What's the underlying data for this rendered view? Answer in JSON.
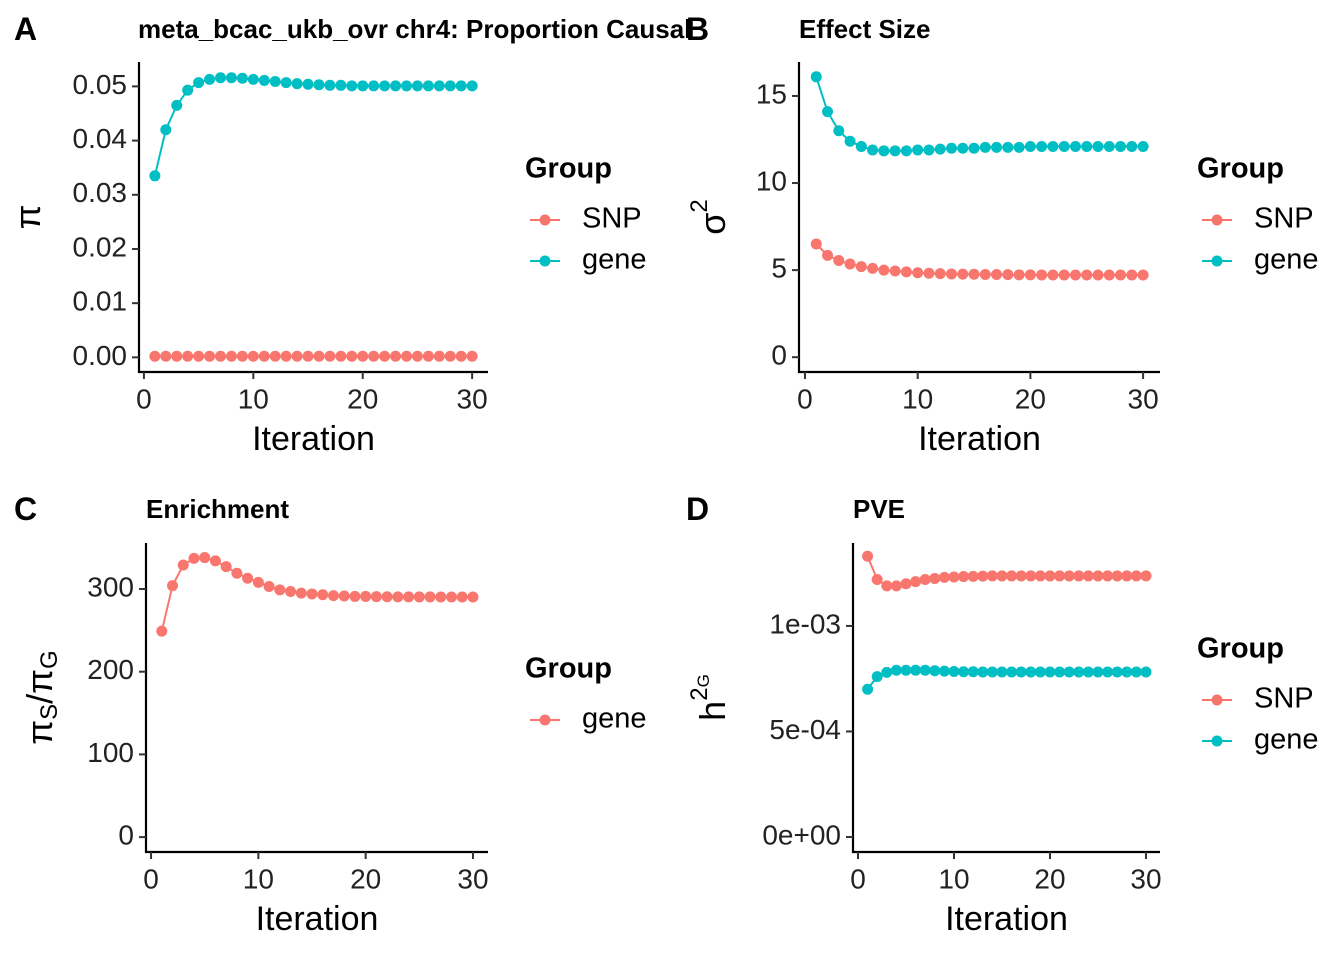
{
  "chart_data": [
    {
      "type": "line",
      "tag": "A",
      "title": "meta_bcac_ukb_ovr chr4: Proportion Causal",
      "xlabel": "Iteration",
      "ylabel": [
        {
          "t": "π",
          "pos": "base"
        }
      ],
      "x": [
        1,
        2,
        3,
        4,
        5,
        6,
        7,
        8,
        9,
        10,
        11,
        12,
        13,
        14,
        15,
        16,
        17,
        18,
        19,
        20,
        21,
        22,
        23,
        24,
        25,
        26,
        27,
        28,
        29,
        30
      ],
      "series": [
        {
          "name": "SNP",
          "color": "#F8766D",
          "values": [
            0.0002,
            0.0002,
            0.0002,
            0.0002,
            0.0002,
            0.0002,
            0.0002,
            0.0002,
            0.0002,
            0.0002,
            0.0002,
            0.0002,
            0.0002,
            0.0002,
            0.0002,
            0.0002,
            0.0002,
            0.0002,
            0.0002,
            0.0002,
            0.0002,
            0.0002,
            0.0002,
            0.0002,
            0.0002,
            0.0002,
            0.0002,
            0.0002,
            0.0002,
            0.0002
          ]
        },
        {
          "name": "gene",
          "color": "#00BFC4",
          "values": [
            0.0335,
            0.042,
            0.0465,
            0.0493,
            0.0507,
            0.0513,
            0.0516,
            0.0516,
            0.0515,
            0.0513,
            0.0511,
            0.0509,
            0.0507,
            0.0505,
            0.0504,
            0.0503,
            0.0502,
            0.0502,
            0.0501,
            0.0501,
            0.0501,
            0.0501,
            0.0501,
            0.0501,
            0.0501,
            0.0501,
            0.0501,
            0.0501,
            0.0501,
            0.0501
          ]
        }
      ],
      "xlim": [
        -0.45,
        31.45
      ],
      "xticks": [
        0,
        10,
        20,
        30
      ],
      "ylim": [
        -0.0027,
        0.0545
      ],
      "yticks": [
        {
          "value": 0,
          "label": "0.00"
        },
        0.01,
        0.02,
        0.03,
        0.04,
        0.05
      ],
      "legend": "right",
      "legend_title": "Group"
    },
    {
      "type": "line",
      "tag": "B",
      "title": "Effect Size",
      "xlabel": "Iteration",
      "ylabel": [
        {
          "t": "σ",
          "pos": "base"
        },
        {
          "t": "2",
          "pos": "sup"
        }
      ],
      "x": [
        1,
        2,
        3,
        4,
        5,
        6,
        7,
        8,
        9,
        10,
        11,
        12,
        13,
        14,
        15,
        16,
        17,
        18,
        19,
        20,
        21,
        22,
        23,
        24,
        25,
        26,
        27,
        28,
        29,
        30
      ],
      "series": [
        {
          "name": "SNP",
          "color": "#F8766D",
          "values": [
            6.5,
            5.85,
            5.55,
            5.35,
            5.2,
            5.1,
            5.0,
            4.95,
            4.9,
            4.85,
            4.82,
            4.8,
            4.78,
            4.77,
            4.76,
            4.75,
            4.75,
            4.74,
            4.73,
            4.73,
            4.72,
            4.72,
            4.72,
            4.72,
            4.72,
            4.72,
            4.72,
            4.72,
            4.72,
            4.72
          ]
        },
        {
          "name": "gene",
          "color": "#00BFC4",
          "values": [
            16.1,
            14.1,
            13.0,
            12.4,
            12.1,
            11.9,
            11.85,
            11.85,
            11.85,
            11.9,
            11.9,
            11.95,
            12.0,
            12.0,
            12.0,
            12.05,
            12.05,
            12.05,
            12.05,
            12.1,
            12.1,
            12.1,
            12.1,
            12.1,
            12.1,
            12.1,
            12.1,
            12.1,
            12.1,
            12.1
          ]
        }
      ],
      "xlim": [
        -0.53,
        31.5
      ],
      "xticks": [
        0,
        10,
        20,
        30
      ],
      "ylim": [
        -0.85,
        16.95
      ],
      "yticks": [
        0,
        5,
        10,
        15
      ],
      "legend": "right",
      "legend_title": "Group"
    },
    {
      "type": "line",
      "tag": "C",
      "title": "Enrichment",
      "xlabel": "Iteration",
      "ylabel": [
        {
          "t": "π",
          "pos": "base"
        },
        {
          "t": "S",
          "pos": "sub"
        },
        {
          "t": "/",
          "pos": "base"
        },
        {
          "t": "π",
          "pos": "base"
        },
        {
          "t": "G",
          "pos": "sub"
        }
      ],
      "x": [
        1,
        2,
        3,
        4,
        5,
        6,
        7,
        8,
        9,
        10,
        11,
        12,
        13,
        14,
        15,
        16,
        17,
        18,
        19,
        20,
        21,
        22,
        23,
        24,
        25,
        26,
        27,
        28,
        29,
        30
      ],
      "series": [
        {
          "name": "gene",
          "color": "#F8766D",
          "values": [
            249,
            304,
            329,
            337,
            338,
            334,
            327,
            319,
            313,
            308,
            303,
            299,
            297,
            295,
            294,
            293,
            292,
            291.5,
            291,
            291,
            290.8,
            290.6,
            290.5,
            290.5,
            290.4,
            290.4,
            290.3,
            290.3,
            290.3,
            290.3
          ]
        }
      ],
      "xlim": [
        -0.47,
        31.4
      ],
      "xticks": [
        0,
        10,
        20,
        30
      ],
      "ylim": [
        -18,
        355.6
      ],
      "yticks": [
        0,
        100,
        200,
        300
      ],
      "legend": "right",
      "legend_title": "Group"
    },
    {
      "type": "line",
      "tag": "D",
      "title": "PVE",
      "xlabel": "Iteration",
      "ylabel": [
        {
          "t": "h",
          "pos": "base"
        },
        {
          "t": "2",
          "pos": "sup"
        },
        {
          "t": "G",
          "pos": "supsub"
        }
      ],
      "x": [
        1,
        2,
        3,
        4,
        5,
        6,
        7,
        8,
        9,
        10,
        11,
        12,
        13,
        14,
        15,
        16,
        17,
        18,
        19,
        20,
        21,
        22,
        23,
        24,
        25,
        26,
        27,
        28,
        29,
        30
      ],
      "series": [
        {
          "name": "SNP",
          "color": "#F8766D",
          "values": [
            0.00133,
            0.00122,
            0.00119,
            0.00119,
            0.0012,
            0.00121,
            0.00122,
            0.001225,
            0.00123,
            0.001232,
            0.001234,
            0.001235,
            0.001236,
            0.001237,
            0.001237,
            0.001237,
            0.001237,
            0.001237,
            0.001237,
            0.001237,
            0.001237,
            0.001237,
            0.001237,
            0.001237,
            0.001237,
            0.001237,
            0.001237,
            0.001237,
            0.001237,
            0.001237
          ]
        },
        {
          "name": "gene",
          "color": "#00BFC4",
          "values": [
            0.0007,
            0.00076,
            0.00078,
            0.00079,
            0.00079,
            0.00079,
            0.00079,
            0.000788,
            0.000786,
            0.000784,
            0.000783,
            0.000783,
            0.000782,
            0.000782,
            0.000782,
            0.000782,
            0.000782,
            0.000782,
            0.000782,
            0.000782,
            0.000782,
            0.000782,
            0.000782,
            0.000782,
            0.000782,
            0.000782,
            0.000782,
            0.000782,
            0.000782,
            0.000782
          ]
        }
      ],
      "xlim": [
        -0.52,
        31.46
      ],
      "xticks": [
        0,
        10,
        20,
        30
      ],
      "ylim": [
        -7.1e-05,
        0.001393
      ],
      "yticks": [
        {
          "value": 0,
          "label": "0e+00"
        },
        {
          "value": 0.0005,
          "label": "5e-04"
        },
        {
          "value": 0.001,
          "label": "1e-03"
        }
      ],
      "legend": "right",
      "legend_title": "Group"
    }
  ]
}
